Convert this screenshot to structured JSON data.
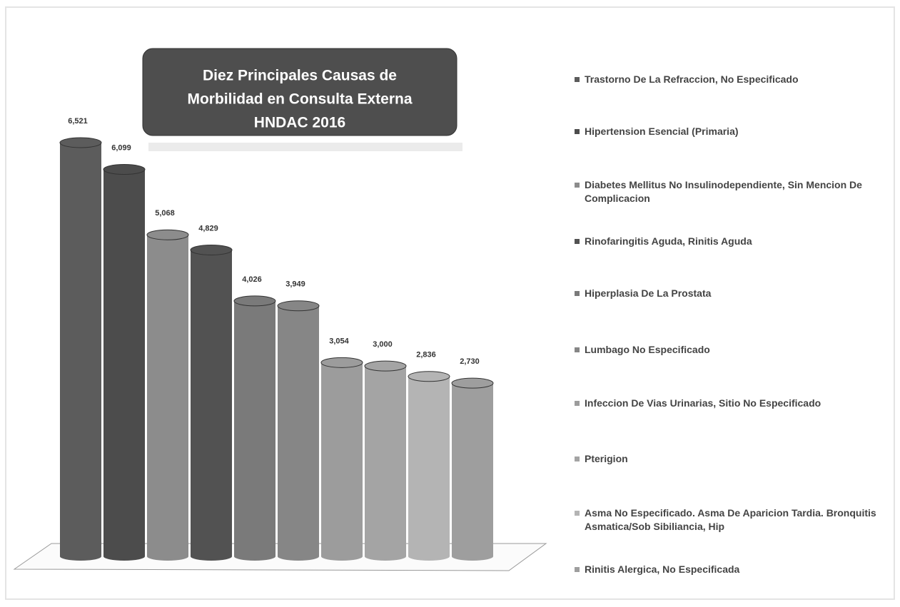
{
  "chart_data": {
    "type": "bar3d",
    "title": [
      "Diez Principales Causas de",
      "Morbilidad en Consulta Externa",
      "HNDAC 2016"
    ],
    "categories": [
      "Trastorno De La Refraccion, No Especificado",
      "Hipertension Esencial (Primaria)",
      "Diabetes Mellitus No Insulinodependiente, Sin Mencion De Complicacion",
      "Rinofaringitis Aguda, Rinitis Aguda",
      "Hiperplasia De La Prostata",
      "Lumbago No Especificado",
      "Infeccion De Vias Urinarias, Sitio No Especificado",
      "Pterigion",
      "Asma No Especificado. Asma De Aparicion Tardia. Bronquitis Asmatica/Sob Sibiliancia, Hip",
      "Rinitis Alergica, No Especificada"
    ],
    "values": [
      6521,
      6099,
      5068,
      4829,
      4026,
      3949,
      3054,
      3000,
      2836,
      2730
    ],
    "value_labels": [
      "6,521",
      "6,099",
      "5,068",
      "4,829",
      "4,026",
      "3,949",
      "3,054",
      "3,000",
      "2,836",
      "2,730"
    ],
    "colors": [
      "#5c5c5c",
      "#4c4c4c",
      "#8c8c8c",
      "#525252",
      "#7a7a7a",
      "#868686",
      "#9c9c9c",
      "#a4a4a4",
      "#b4b4b4",
      "#9e9e9e"
    ]
  }
}
